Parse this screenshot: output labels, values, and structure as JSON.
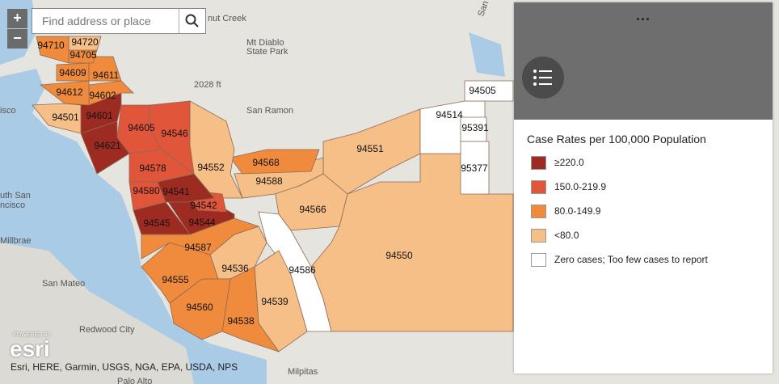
{
  "search": {
    "placeholder": "Find address or place"
  },
  "zoom": {
    "in": "+",
    "out": "−"
  },
  "panel": {
    "menu": "...",
    "legend_title": "Case Rates per 100,000 Population",
    "classes": [
      {
        "label": "≥220.0",
        "color": "#9e2b22"
      },
      {
        "label": "150.0-219.9",
        "color": "#e1553b"
      },
      {
        "label": "80.0-149.9",
        "color": "#f08b3e"
      },
      {
        "label": "<80.0",
        "color": "#f6bf88"
      },
      {
        "label": "Zero cases; Too few cases to report",
        "color": "#ffffff"
      }
    ]
  },
  "zips": [
    {
      "label": "94550",
      "class": 3
    },
    {
      "label": "94551",
      "class": 3
    },
    {
      "label": "94514",
      "class": 4
    },
    {
      "label": "94505",
      "class": 4
    },
    {
      "label": "95391",
      "class": 4
    },
    {
      "label": "95377",
      "class": 4
    },
    {
      "label": "94566",
      "class": 3
    },
    {
      "label": "94588",
      "class": 3
    },
    {
      "label": "94568",
      "class": 2
    },
    {
      "label": "94552",
      "class": 3
    },
    {
      "label": "94586",
      "class": 4
    },
    {
      "label": "94539",
      "class": 3
    },
    {
      "label": "94536",
      "class": 3
    },
    {
      "label": "94538",
      "class": 2
    },
    {
      "label": "94560",
      "class": 2
    },
    {
      "label": "94555",
      "class": 2
    },
    {
      "label": "94587",
      "class": 2
    },
    {
      "label": "94545",
      "class": 0
    },
    {
      "label": "94544",
      "class": 0
    },
    {
      "label": "94542",
      "class": 1
    },
    {
      "label": "94541",
      "class": 0
    },
    {
      "label": "94580",
      "class": 1
    },
    {
      "label": "94578",
      "class": 1
    },
    {
      "label": "94546",
      "class": 1
    },
    {
      "label": "94605",
      "class": 1
    },
    {
      "label": "94621",
      "class": 0
    },
    {
      "label": "94601",
      "class": 0
    },
    {
      "label": "94602",
      "class": 2
    },
    {
      "label": "94612",
      "class": 2
    },
    {
      "label": "94501",
      "class": 3
    },
    {
      "label": "94609",
      "class": 2
    },
    {
      "label": "94611",
      "class": 2
    },
    {
      "label": "94705",
      "class": 2
    },
    {
      "label": "94720",
      "class": 3
    },
    {
      "label": "94710",
      "class": 2
    }
  ],
  "places": [
    "nut Creek",
    "Mt Diablo",
    "State Park",
    "2028 ft",
    "San Ramon",
    "isco",
    "uth San",
    "ncisco",
    "Millbrae",
    "San Mateo",
    "Redwood City",
    "Palo Alto",
    "Milpitas",
    "San Joaquin"
  ],
  "attribution": "Esri, HERE, Garmin, USGS, NGA, EPA, USDA, NPS",
  "logo": {
    "powered": "POWERED BY",
    "name": "esri"
  }
}
